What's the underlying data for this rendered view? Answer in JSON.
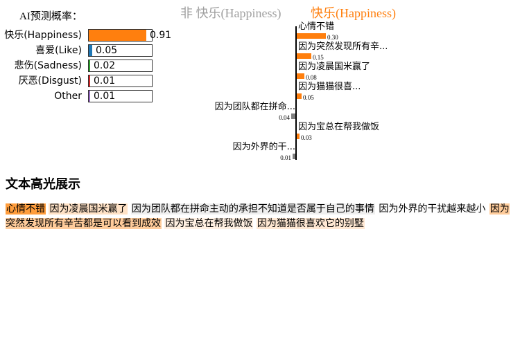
{
  "prediction": {
    "title": "AI预测概率：",
    "rows": [
      {
        "label": "快乐(Happiness)",
        "value_text": "0.91",
        "value": 0.91,
        "color": "#ff7f0e"
      },
      {
        "label": "喜爱(Like)",
        "value_text": "0.05",
        "value": 0.05,
        "color": "#1f77b4"
      },
      {
        "label": "悲伤(Sadness)",
        "value_text": "0.02",
        "value": 0.02,
        "color": "#2ca02c"
      },
      {
        "label": "厌恶(Disgust)",
        "value_text": "0.01",
        "value": 0.01,
        "color": "#d62728"
      },
      {
        "label": "Other",
        "value_text": "0.01",
        "value": 0.01,
        "color": "#9467bd"
      }
    ]
  },
  "explanation": {
    "negative_heading": "非 快乐(Happiness)",
    "positive_heading": "快乐(Happiness)",
    "features": [
      {
        "label": "心情不错",
        "value_text": "0.30",
        "value": 0.3,
        "direction": "positive"
      },
      {
        "label": "因为突然发现所有辛...",
        "value_text": "0.15",
        "value": 0.15,
        "direction": "positive"
      },
      {
        "label": "因为凌晨国米赢了",
        "value_text": "0.08",
        "value": 0.08,
        "direction": "positive"
      },
      {
        "label": "因为猫猫很喜...",
        "value_text": "0.05",
        "value": 0.05,
        "direction": "positive"
      },
      {
        "label": "因为团队都在拼命...",
        "value_text": "0.04",
        "value": 0.04,
        "direction": "negative"
      },
      {
        "label": "因为宝总在帮我做饭",
        "value_text": "0.03",
        "value": 0.03,
        "direction": "positive"
      },
      {
        "label": "因为外界的干...",
        "value_text": "0.01",
        "value": 0.01,
        "direction": "negative"
      }
    ],
    "colors": {
      "positive": "#ff7f0e",
      "negative": "#808080"
    }
  },
  "highlight": {
    "title": "文本高光展示",
    "segments": [
      {
        "text": "心情不错",
        "color": "#ff9d3c"
      },
      {
        "text": "因为凌晨国米赢了",
        "color": "#ffe2c6"
      },
      {
        "text": "因为团队都在拼命主动的承担不知道是否属于自己的事情",
        "color": "#efefef"
      },
      {
        "text": "因为外界的干扰越来越小",
        "color": "#fdfdfd"
      },
      {
        "text": "因为突然发现所有辛苦都是可以看到成效",
        "color": "#ffcc9b"
      },
      {
        "text": "因为宝总在帮我做饭",
        "color": "#fff0e2"
      },
      {
        "text": "因为猫猫很喜欢它的别墅",
        "color": "#ffe8d3"
      }
    ]
  }
}
